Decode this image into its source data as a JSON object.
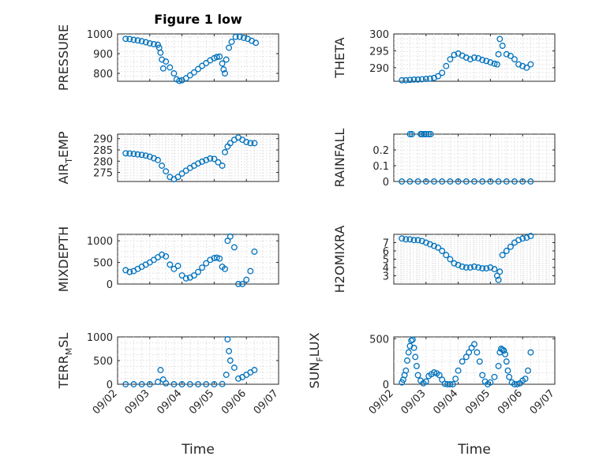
{
  "figure": {
    "title": "Figure 1 low",
    "marker_color": "#0072BD"
  },
  "chart_data": [
    {
      "type": "scatter",
      "ylabel": "PRESSURE",
      "ylim": [
        760,
        1000
      ],
      "yticks": [
        800,
        900,
        1000
      ],
      "yticklabels": [
        "800",
        "900",
        "1000"
      ],
      "xlim": [
        "09/02",
        "09/07"
      ],
      "xtick_labels_visible": false,
      "grid": true,
      "series": [
        {
          "x": [
            "09/02 06:00",
            "09/02 09:00",
            "09/02 12:00",
            "09/02 15:00",
            "09/02 18:00",
            "09/02 21:00",
            "09/03 00:00",
            "09/03 03:00",
            "09/03 06:00",
            "09/03 07:00",
            "09/03 08:00",
            "09/03 09:00",
            "09/03 10:00",
            "09/03 12:00",
            "09/03 15:00",
            "09/03 18:00",
            "09/03 20:00",
            "09/03 22:00",
            "09/04 00:00",
            "09/04 03:00",
            "09/04 06:00",
            "09/04 09:00",
            "09/04 12:00",
            "09/04 15:00",
            "09/04 18:00",
            "09/04 21:00",
            "09/05 00:00",
            "09/05 02:00",
            "09/05 04:00",
            "09/05 06:00",
            "09/05 07:00",
            "09/05 08:00",
            "09/05 09:00",
            "09/05 11:00",
            "09/05 13:00",
            "09/05 16:00",
            "09/05 19:00",
            "09/05 22:00",
            "09/06 01:00",
            "09/06 04:00",
            "09/06 07:00"
          ],
          "y": [
            975,
            974,
            970,
            967,
            963,
            958,
            952,
            948,
            945,
            930,
            905,
            870,
            825,
            860,
            830,
            800,
            770,
            762,
            765,
            775,
            790,
            805,
            822,
            838,
            852,
            866,
            877,
            883,
            885,
            850,
            820,
            800,
            870,
            930,
            960,
            985,
            985,
            980,
            975,
            965,
            955
          ]
        }
      ]
    },
    {
      "type": "scatter",
      "ylabel": "THETA",
      "ylim": [
        286,
        300
      ],
      "yticks": [
        290,
        295,
        300
      ],
      "yticklabels": [
        "290",
        "295",
        "300"
      ],
      "xlim": [
        "09/02",
        "09/07"
      ],
      "xtick_labels_visible": false,
      "grid": true,
      "series": [
        {
          "x": [
            "09/02 06:00",
            "09/02 09:00",
            "09/02 12:00",
            "09/02 15:00",
            "09/02 18:00",
            "09/02 21:00",
            "09/03 00:00",
            "09/03 03:00",
            "09/03 06:00",
            "09/03 09:00",
            "09/03 12:00",
            "09/03 15:00",
            "09/03 18:00",
            "09/03 21:00",
            "09/04 00:00",
            "09/04 03:00",
            "09/04 06:00",
            "09/04 09:00",
            "09/04 12:00",
            "09/04 15:00",
            "09/04 18:00",
            "09/04 21:00",
            "09/05 00:00",
            "09/05 03:00",
            "09/05 05:00",
            "09/05 06:00",
            "09/05 07:00",
            "09/05 09:00",
            "09/05 12:00",
            "09/05 15:00",
            "09/05 18:00",
            "09/05 21:00",
            "09/06 00:00",
            "09/06 03:00",
            "09/06 06:00"
          ],
          "y": [
            286.3,
            286.3,
            286.4,
            286.5,
            286.5,
            286.6,
            286.7,
            286.8,
            287.0,
            287.5,
            288.5,
            290.5,
            292.5,
            293.8,
            294.2,
            293.6,
            293.0,
            292.5,
            293.0,
            292.8,
            292.3,
            292.0,
            291.6,
            291.2,
            291.0,
            294.0,
            298.5,
            296.5,
            294.0,
            293.5,
            292.5,
            291.0,
            290.5,
            290.0,
            291.0
          ]
        }
      ]
    },
    {
      "type": "scatter",
      "ylabel": "AIR_TEMP",
      "ylim": [
        271,
        292
      ],
      "yticks": [
        275,
        280,
        285,
        290
      ],
      "yticklabels": [
        "275",
        "280",
        "285",
        "290"
      ],
      "xlim": [
        "09/02",
        "09/07"
      ],
      "xtick_labels_visible": false,
      "grid": true,
      "series": [
        {
          "x": [
            "09/02 06:00",
            "09/02 09:00",
            "09/02 12:00",
            "09/02 15:00",
            "09/02 18:00",
            "09/02 21:00",
            "09/03 00:00",
            "09/03 03:00",
            "09/03 06:00",
            "09/03 09:00",
            "09/03 12:00",
            "09/03 15:00",
            "09/03 18:00",
            "09/03 21:00",
            "09/04 00:00",
            "09/04 03:00",
            "09/04 06:00",
            "09/04 09:00",
            "09/04 12:00",
            "09/04 15:00",
            "09/04 18:00",
            "09/04 21:00",
            "09/05 00:00",
            "09/05 03:00",
            "09/05 06:00",
            "09/05 08:00",
            "09/05 10:00",
            "09/05 12:00",
            "09/05 15:00",
            "09/05 18:00",
            "09/05 21:00",
            "09/06 00:00",
            "09/06 03:00",
            "09/06 06:00"
          ],
          "y": [
            283.5,
            283.4,
            283.2,
            283.0,
            282.8,
            282.5,
            282.0,
            281.3,
            280.5,
            278.0,
            275.5,
            273.0,
            272.0,
            273.0,
            274.5,
            275.8,
            277.0,
            278.0,
            279.0,
            279.8,
            280.5,
            281.2,
            281.0,
            279.5,
            278.0,
            284.0,
            286.5,
            288.0,
            289.5,
            290.5,
            289.5,
            288.5,
            288.0,
            288.0
          ]
        }
      ]
    },
    {
      "type": "scatter",
      "ylabel": "RAINFALL",
      "ylim": [
        0,
        0.3
      ],
      "yticks": [
        0,
        0.1,
        0.2
      ],
      "yticklabels": [
        "0",
        "0.1",
        "0.2"
      ],
      "xlim": [
        "09/02",
        "09/07"
      ],
      "xtick_labels_visible": false,
      "grid": true,
      "series": [
        {
          "x": [
            "09/02 06:00",
            "09/02 12:00",
            "09/02 18:00",
            "09/03 00:00",
            "09/03 06:00",
            "09/03 12:00",
            "09/03 18:00",
            "09/04 00:00",
            "09/04 06:00",
            "09/04 12:00",
            "09/04 18:00",
            "09/05 00:00",
            "09/05 06:00",
            "09/05 12:00",
            "09/05 18:00",
            "09/06 00:00",
            "09/06 06:00",
            "09/02 12:00",
            "09/02 13:30",
            "09/02 20:00",
            "09/02 21:00",
            "09/02 22:30",
            "09/03 00:00",
            "09/03 02:00",
            "09/03 03:30"
          ],
          "y": [
            0,
            0,
            0,
            0,
            0,
            0,
            0,
            0,
            0,
            0,
            0,
            0,
            0,
            0,
            0,
            0,
            0,
            0.3,
            0.3,
            0.3,
            0.3,
            0.3,
            0.3,
            0.3,
            0.3
          ]
        }
      ]
    },
    {
      "type": "scatter",
      "ylabel": "MIXDEPTH",
      "ylim": [
        0,
        1150
      ],
      "yticks": [
        0,
        500,
        1000
      ],
      "yticklabels": [
        "0",
        "500",
        "1000"
      ],
      "xlim": [
        "09/02",
        "09/07"
      ],
      "xtick_labels_visible": false,
      "grid": true,
      "series": [
        {
          "x": [
            "09/02 06:00",
            "09/02 09:00",
            "09/02 12:00",
            "09/02 15:00",
            "09/02 18:00",
            "09/02 21:00",
            "09/03 00:00",
            "09/03 03:00",
            "09/03 06:00",
            "09/03 09:00",
            "09/03 12:00",
            "09/03 15:00",
            "09/03 18:00",
            "09/03 21:00",
            "09/04 00:00",
            "09/04 03:00",
            "09/04 06:00",
            "09/04 09:00",
            "09/04 12:00",
            "09/04 15:00",
            "09/04 18:00",
            "09/04 21:00",
            "09/05 00:00",
            "09/05 02:00",
            "09/05 04:00",
            "09/05 06:00",
            "09/05 08:00",
            "09/05 10:00",
            "09/05 12:00",
            "09/05 15:00",
            "09/05 18:00",
            "09/05 21:00",
            "09/06 00:00",
            "09/06 03:00",
            "09/06 06:00"
          ],
          "y": [
            320,
            280,
            300,
            350,
            400,
            450,
            500,
            560,
            620,
            680,
            640,
            450,
            350,
            420,
            200,
            130,
            150,
            200,
            280,
            380,
            480,
            560,
            600,
            610,
            590,
            400,
            350,
            1000,
            1100,
            850,
            0,
            0,
            100,
            300,
            750
          ]
        }
      ]
    },
    {
      "type": "scatter",
      "ylabel": "H2OMIXRA",
      "ylim": [
        2,
        8
      ],
      "yticks": [
        3,
        4,
        5,
        6,
        7
      ],
      "yticklabels": [
        "3",
        "4",
        "5",
        "6",
        "7"
      ],
      "xlim": [
        "09/02",
        "09/07"
      ],
      "xtick_labels_visible": false,
      "grid": true,
      "series": [
        {
          "x": [
            "09/02 06:00",
            "09/02 09:00",
            "09/02 12:00",
            "09/02 15:00",
            "09/02 18:00",
            "09/02 21:00",
            "09/03 00:00",
            "09/03 03:00",
            "09/03 06:00",
            "09/03 09:00",
            "09/03 12:00",
            "09/03 15:00",
            "09/03 18:00",
            "09/03 21:00",
            "09/04 00:00",
            "09/04 03:00",
            "09/04 06:00",
            "09/04 09:00",
            "09/04 12:00",
            "09/04 15:00",
            "09/04 18:00",
            "09/04 21:00",
            "09/05 00:00",
            "09/05 03:00",
            "09/05 05:00",
            "09/05 06:00",
            "09/05 07:00",
            "09/05 09:00",
            "09/05 12:00",
            "09/05 15:00",
            "09/05 18:00",
            "09/05 21:00",
            "09/06 00:00",
            "09/06 03:00",
            "09/06 06:00"
          ],
          "y": [
            7.5,
            7.4,
            7.4,
            7.3,
            7.3,
            7.2,
            7.0,
            6.8,
            6.6,
            6.4,
            6.0,
            5.5,
            5.0,
            4.5,
            4.3,
            4.1,
            4.0,
            4.0,
            4.1,
            4.0,
            3.9,
            3.9,
            4.0,
            3.8,
            3.0,
            2.5,
            3.5,
            5.5,
            6.0,
            6.5,
            7.0,
            7.3,
            7.5,
            7.6,
            7.8
          ]
        }
      ]
    },
    {
      "type": "scatter",
      "ylabel": "TERR_MSL",
      "ylim": [
        0,
        1000
      ],
      "yticks": [
        0,
        500,
        1000
      ],
      "yticklabels": [
        "0",
        "500",
        "1000"
      ],
      "xlim": [
        "09/02",
        "09/07"
      ],
      "xtick_labels": [
        "09/02",
        "09/03",
        "09/04",
        "09/05",
        "09/06",
        "09/07"
      ],
      "xlabel": "Time",
      "grid": true,
      "series": [
        {
          "x": [
            "09/02 06:00",
            "09/02 12:00",
            "09/02 18:00",
            "09/03 00:00",
            "09/03 06:00",
            "09/03 08:00",
            "09/03 10:00",
            "09/03 12:00",
            "09/03 18:00",
            "09/04 00:00",
            "09/04 06:00",
            "09/04 12:00",
            "09/04 18:00",
            "09/05 00:00",
            "09/05 06:00",
            "09/05 09:00",
            "09/05 10:00",
            "09/05 11:00",
            "09/05 12:00",
            "09/05 15:00",
            "09/05 18:00",
            "09/05 21:00",
            "09/06 00:00",
            "09/06 03:00",
            "09/06 06:00"
          ],
          "y": [
            0,
            0,
            0,
            0,
            50,
            300,
            100,
            20,
            0,
            0,
            0,
            0,
            0,
            0,
            5,
            200,
            950,
            700,
            500,
            350,
            120,
            150,
            200,
            250,
            300
          ]
        }
      ]
    },
    {
      "type": "scatter",
      "ylabel": "SUN_FLUX",
      "ylim": [
        0,
        520
      ],
      "yticks": [
        0,
        500
      ],
      "yticklabels": [
        "0",
        "500"
      ],
      "xlim": [
        "09/02",
        "09/07"
      ],
      "xtick_labels": [
        "09/02",
        "09/03",
        "09/04",
        "09/05",
        "09/06",
        "09/07"
      ],
      "xlabel": "Time",
      "grid": true,
      "series": [
        {
          "x": [
            "09/02 06:00",
            "09/02 07:00",
            "09/02 08:00",
            "09/02 09:00",
            "09/02 10:00",
            "09/02 11:00",
            "09/02 12:00",
            "09/02 13:00",
            "09/02 14:00",
            "09/02 15:00",
            "09/02 16:00",
            "09/02 17:00",
            "09/02 18:00",
            "09/02 20:00",
            "09/02 22:00",
            "09/03 00:00",
            "09/03 02:00",
            "09/03 04:00",
            "09/03 06:00",
            "09/03 08:00",
            "09/03 10:00",
            "09/03 12:00",
            "09/03 14:00",
            "09/03 16:00",
            "09/03 18:00",
            "09/03 20:00",
            "09/03 22:00",
            "09/04 00:00",
            "09/04 03:00",
            "09/04 06:00",
            "09/04 08:00",
            "09/04 10:00",
            "09/04 12:00",
            "09/04 14:00",
            "09/04 16:00",
            "09/04 18:00",
            "09/04 20:00",
            "09/04 22:00",
            "09/05 00:00",
            "09/05 03:00",
            "09/05 06:00",
            "09/05 07:00",
            "09/05 08:00",
            "09/05 09:00",
            "09/05 10:00",
            "09/05 11:00",
            "09/05 12:00",
            "09/05 13:00",
            "09/05 14:00",
            "09/05 16:00",
            "09/05 18:00",
            "09/05 20:00",
            "09/05 22:00",
            "09/06 00:00",
            "09/06 02:00",
            "09/06 04:00",
            "09/06 06:00"
          ],
          "y": [
            20,
            50,
            100,
            150,
            260,
            350,
            420,
            480,
            490,
            400,
            300,
            200,
            100,
            40,
            10,
            30,
            90,
            110,
            130,
            120,
            100,
            50,
            5,
            0,
            0,
            0,
            60,
            150,
            250,
            300,
            350,
            400,
            440,
            350,
            250,
            100,
            30,
            0,
            20,
            80,
            200,
            350,
            390,
            380,
            370,
            330,
            250,
            150,
            80,
            20,
            0,
            0,
            10,
            40,
            60,
            150,
            350
          ]
        }
      ]
    }
  ]
}
